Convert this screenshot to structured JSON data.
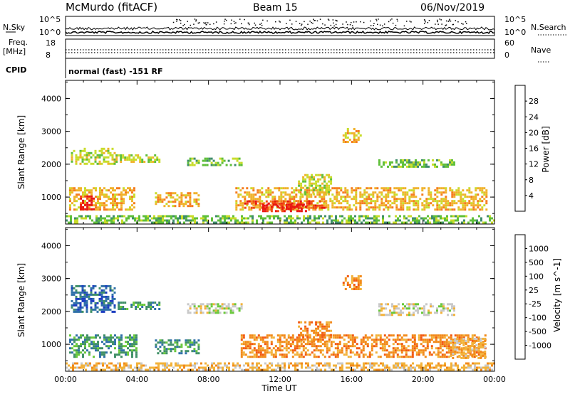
{
  "header": {
    "station": "McMurdo (fitACF)",
    "beam": "Beam 15",
    "date": "06/Nov/2019"
  },
  "top_panels": {
    "nsky_label": "N.Sky",
    "nsky_ticks": [
      "10^5",
      "10^0"
    ],
    "nsearch_label": "N.Search",
    "nsearch_ticks": [
      "10^5",
      "10^0"
    ],
    "freq_label_line1": "Freq.",
    "freq_label_line2": "[MHz]",
    "freq_ticks": [
      "18",
      "8"
    ],
    "nave_label": "Nave",
    "nave_ticks": [
      "60",
      "0"
    ],
    "cpid_label": "CPID",
    "cpid_text": "normal (fast) -151 RF"
  },
  "chart_data": [
    {
      "type": "heatmap",
      "title": "",
      "parameter": "Power",
      "colorbar_label": "Power [dB]",
      "colorbar_ticks": [
        "28",
        "24",
        "20",
        "16",
        "12",
        "8",
        "4"
      ],
      "colorbar_colors": [
        "#1b1bf0",
        "#2e51b8",
        "#3f8d6a",
        "#5fbf3a",
        "#c8dc2a",
        "#f0b22a",
        "#f57c1e",
        "#f04a12",
        "#e81410"
      ],
      "ylabel": "Slant Range [km]",
      "ytick_labels": [
        "4000",
        "3000",
        "2000",
        "1000"
      ],
      "ylim": [
        180,
        4550
      ],
      "xlim_hours": [
        0,
        24
      ],
      "regions": [
        {
          "t0": 0.3,
          "t1": 2.8,
          "r0": 2000,
          "r1": 2500,
          "level": 4
        },
        {
          "t0": 2.8,
          "t1": 5.2,
          "r0": 2050,
          "r1": 2300,
          "level": 4
        },
        {
          "t0": 6.8,
          "t1": 9.8,
          "r0": 1950,
          "r1": 2200,
          "level": 3
        },
        {
          "t0": 17.5,
          "t1": 21.8,
          "r0": 1900,
          "r1": 2150,
          "level": 3
        },
        {
          "t0": 0.2,
          "t1": 3.8,
          "r0": 600,
          "r1": 1300,
          "level": 5
        },
        {
          "t0": 0.8,
          "t1": 1.6,
          "r0": 650,
          "r1": 1050,
          "level": 8
        },
        {
          "t0": 5.0,
          "t1": 7.5,
          "r0": 700,
          "r1": 1150,
          "level": 5
        },
        {
          "t0": 9.5,
          "t1": 23.5,
          "r0": 650,
          "r1": 1300,
          "level": 5
        },
        {
          "t0": 10.0,
          "t1": 14.5,
          "r0": 650,
          "r1": 900,
          "level": 7
        },
        {
          "t0": 11.0,
          "t1": 13.5,
          "r0": 600,
          "r1": 800,
          "level": 8
        },
        {
          "t0": 13.0,
          "t1": 14.8,
          "r0": 1100,
          "r1": 1700,
          "level": 4
        },
        {
          "t0": 15.5,
          "t1": 16.5,
          "r0": 2700,
          "r1": 3100,
          "level": 5
        },
        {
          "t0": 0.0,
          "t1": 24.0,
          "r0": 200,
          "r1": 450,
          "level": 3
        }
      ]
    },
    {
      "type": "heatmap",
      "title": "",
      "parameter": "Velocity",
      "colorbar_label": "Velocity [m s^-1]",
      "colorbar_ticks": [
        "1000",
        "500",
        "100",
        "25",
        "-25",
        "-100",
        "-500",
        "-1000"
      ],
      "colorbar_colors": [
        "#1c3cc0",
        "#2f70a8",
        "#3f8f66",
        "#69c83a",
        "#c8c8c8",
        "#f2b23a",
        "#f28a1a",
        "#f25a12",
        "#e81410"
      ],
      "ylabel": "Slant Range [km]",
      "ytick_labels": [
        "4000",
        "3000",
        "2000",
        "1000"
      ],
      "ylim": [
        180,
        4550
      ],
      "xlim_hours": [
        0,
        24
      ],
      "regions": [
        {
          "t0": 0.3,
          "t1": 2.8,
          "r0": 2000,
          "r1": 2800,
          "level": 1
        },
        {
          "t0": 2.8,
          "t1": 5.2,
          "r0": 2050,
          "r1": 2300,
          "level": 2
        },
        {
          "t0": 6.8,
          "t1": 9.8,
          "r0": 1950,
          "r1": 2250,
          "level": 4
        },
        {
          "t0": 17.5,
          "t1": 21.8,
          "r0": 1900,
          "r1": 2250,
          "level": 4
        },
        {
          "t0": 0.2,
          "t1": 4.0,
          "r0": 650,
          "r1": 1300,
          "level": 2
        },
        {
          "t0": 5.0,
          "t1": 7.5,
          "r0": 700,
          "r1": 1150,
          "level": 2
        },
        {
          "t0": 9.8,
          "t1": 23.5,
          "r0": 650,
          "r1": 1300,
          "level": 6
        },
        {
          "t0": 13.0,
          "t1": 14.8,
          "r0": 1100,
          "r1": 1700,
          "level": 6
        },
        {
          "t0": 15.5,
          "t1": 16.5,
          "r0": 2700,
          "r1": 3100,
          "level": 6
        },
        {
          "t0": 21.5,
          "t1": 23.5,
          "r0": 600,
          "r1": 1200,
          "level": 5
        },
        {
          "t0": 0.0,
          "t1": 24.0,
          "r0": 200,
          "r1": 450,
          "level": 5
        }
      ]
    }
  ],
  "xaxis": {
    "tick_labels": [
      "00:00",
      "04:00",
      "08:00",
      "12:00",
      "16:00",
      "20:00",
      "00:00"
    ],
    "label": "Time UT"
  }
}
